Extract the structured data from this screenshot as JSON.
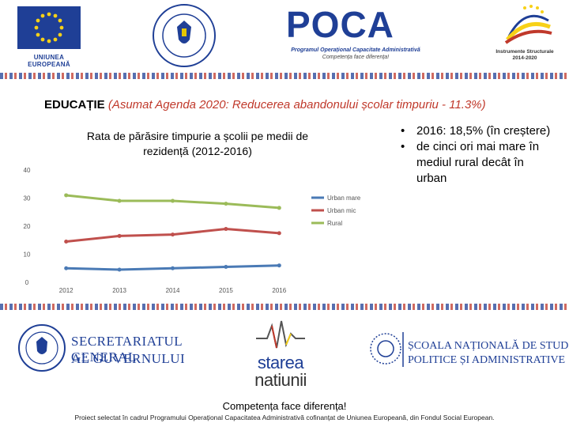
{
  "header": {
    "eu_label": "UNIUNEA EUROPEANĂ",
    "poca_title": "POCA",
    "poca_line1": "Programul Operațional Capacitate Administrativă",
    "poca_line2": "Competența face diferența!",
    "is_line1": "Instrumente Structurale",
    "is_line2": "2014-2020"
  },
  "headline": {
    "main": "EDUCAȚIE",
    "sub": "(Asumat Agenda 2020: Reducerea abandonului școlar timpuriu - 11.3%)"
  },
  "bullets": [
    "2016: 18,5% (în creștere)",
    "de cinci ori mai mare în mediul rural decât în urban"
  ],
  "chart_data": {
    "type": "line",
    "title": "Rata de părăsire timpurie a școlii pe medii de rezidență (2012-2016)",
    "xlabel": "",
    "ylabel": "",
    "categories": [
      "2012",
      "2013",
      "2014",
      "2015",
      "2016"
    ],
    "ylim": [
      0,
      40
    ],
    "yticks": [
      "0",
      "10",
      "20",
      "30",
      "40"
    ],
    "grid": false,
    "legend_position": "right",
    "series": [
      {
        "name": "Urban mare",
        "color": "#4a7ab5",
        "values": [
          5,
          4.5,
          5,
          5.5,
          6
        ]
      },
      {
        "name": "Urban mic",
        "color": "#c0504d",
        "values": [
          14.5,
          16.5,
          17,
          19,
          17.5
        ]
      },
      {
        "name": "Rural",
        "color": "#9bbb59",
        "values": [
          31,
          29,
          29,
          28,
          26.5
        ]
      }
    ]
  },
  "footer": {
    "sgg_line1": "SECRETARIATUL GENERAL",
    "sgg_line2": "AL GUVERNULUI",
    "starea_line1": "starea",
    "starea_line2": "natiunii",
    "snspa_line1": "ȘCOALA NAȚIONALĂ DE STUDII",
    "snspa_line2": "POLITICE ȘI ADMINISTRATIVE",
    "motto": "Competența face diferența!",
    "note": "Proiect selectat în cadrul Programului Operațional Capacitatea Administrativă cofinanțat de Uniunea Europeană, din Fondul Social European."
  }
}
